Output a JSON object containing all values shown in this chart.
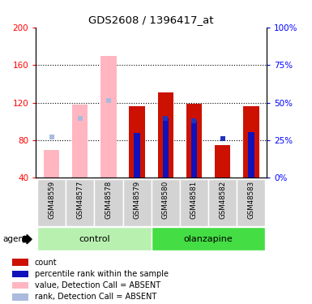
{
  "title": "GDS2608 / 1396417_at",
  "samples": [
    "GSM48559",
    "GSM48577",
    "GSM48578",
    "GSM48579",
    "GSM48580",
    "GSM48581",
    "GSM48582",
    "GSM48583"
  ],
  "count_values": [
    null,
    null,
    null,
    116,
    131,
    119,
    75,
    116
  ],
  "percentile_markers": [
    null,
    null,
    null,
    88,
    103,
    101,
    null,
    89
  ],
  "absent_value_bars": [
    70,
    118,
    170,
    null,
    null,
    null,
    null,
    null
  ],
  "absent_rank_squares": [
    83,
    103,
    122,
    null,
    null,
    null,
    null,
    null
  ],
  "blue_squares_present": [
    null,
    null,
    null,
    null,
    103,
    101,
    82,
    null
  ],
  "ylim_left": [
    40,
    200
  ],
  "ylim_right": [
    0,
    100
  ],
  "yticks_left": [
    40,
    80,
    120,
    160,
    200
  ],
  "yticks_right": [
    0,
    25,
    50,
    75,
    100
  ],
  "bar_width": 0.55,
  "colors": {
    "count": "#cc1100",
    "percentile": "#1111bb",
    "absent_value": "#ffb6c1",
    "absent_rank_sq": "#aabbdd",
    "blue_sq_present": "#2233bb"
  },
  "control_color": "#b8f0b0",
  "olanzapine_color": "#44dd44",
  "legend": [
    {
      "label": "count",
      "color": "#cc1100"
    },
    {
      "label": "percentile rank within the sample",
      "color": "#1111bb"
    },
    {
      "label": "value, Detection Call = ABSENT",
      "color": "#ffb6c1"
    },
    {
      "label": "rank, Detection Call = ABSENT",
      "color": "#aabbdd"
    }
  ]
}
